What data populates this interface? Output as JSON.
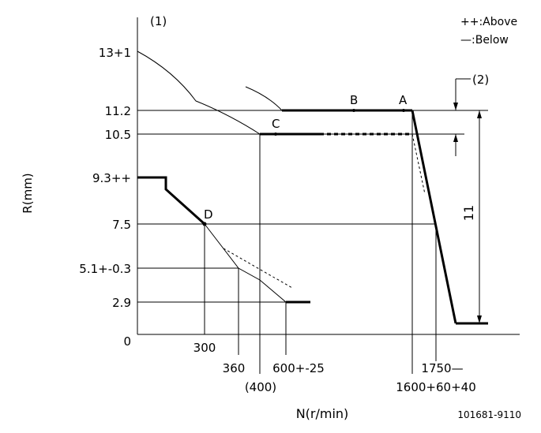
{
  "diagram": {
    "title_ref": "(1)",
    "ref2": "(2)",
    "legend": {
      "above": "++:Above",
      "below": "—:Below"
    },
    "y_axis_label": "R(mm)",
    "x_axis_label": "N(r/min)",
    "code": "101681-9110",
    "y_ticks": [
      "13+1",
      "11.2",
      "10.5",
      "9.3++",
      "7.5",
      "5.1+-0.3",
      "2.9",
      "0"
    ],
    "x_ticks": {
      "t300": "300",
      "t360": "360",
      "t400": "(400)",
      "t600": "600+-25",
      "t1600": "1600+60+40",
      "t1750": "1750—"
    },
    "points": {
      "A": "A",
      "B": "B",
      "C": "C",
      "D": "D"
    },
    "dimension": "11"
  }
}
